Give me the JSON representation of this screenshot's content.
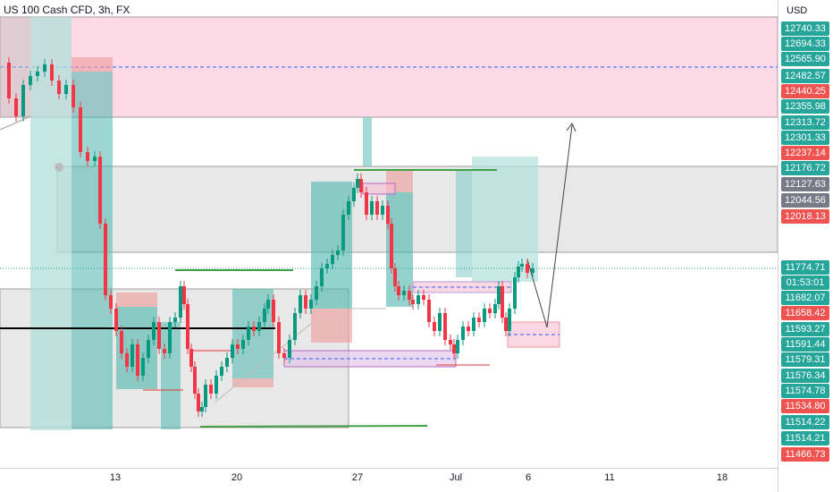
{
  "chart_data": {
    "type": "candlestick",
    "title": "US 100 Cash CFD, 3h, FX",
    "currency": "USD",
    "x_tick_labels": [
      "13",
      "20",
      "27",
      "Jul",
      "6",
      "11",
      "18"
    ],
    "price_labels": [
      {
        "text": "12740.33",
        "color": "#26a69a"
      },
      {
        "text": "12694.33",
        "color": "#26a69a"
      },
      {
        "text": "12565.90",
        "color": "#26a69a"
      },
      {
        "text": "12482.57",
        "color": "#26a69a"
      },
      {
        "text": "12440.25",
        "color": "#ef5350"
      },
      {
        "text": "12355.98",
        "color": "#26a69a"
      },
      {
        "text": "12313.72",
        "color": "#26a69a"
      },
      {
        "text": "12301.33",
        "color": "#26a69a"
      },
      {
        "text": "12237.14",
        "color": "#ef5350"
      },
      {
        "text": "12176.72",
        "color": "#26a69a"
      },
      {
        "text": "12127.63",
        "color": "#787b86"
      },
      {
        "text": "12044.56",
        "color": "#787b86"
      },
      {
        "text": "12018.13",
        "color": "#ef5350"
      },
      {
        "text": "11774.71",
        "color": "#26a69a"
      },
      {
        "text": "01:53:01",
        "color": "#26a69a"
      },
      {
        "text": "11682.07",
        "color": "#26a69a"
      },
      {
        "text": "11658.42",
        "color": "#ef5350"
      },
      {
        "text": "11593.27",
        "color": "#26a69a"
      },
      {
        "text": "11591.44",
        "color": "#26a69a"
      },
      {
        "text": "11579.31",
        "color": "#26a69a"
      },
      {
        "text": "11576.34",
        "color": "#26a69a"
      },
      {
        "text": "11574.78",
        "color": "#26a69a"
      },
      {
        "text": "11534.80",
        "color": "#ef5350"
      },
      {
        "text": "11514.22",
        "color": "#26a69a"
      },
      {
        "text": "11514.21",
        "color": "#26a69a"
      },
      {
        "text": "11466.73",
        "color": "#ef5350"
      }
    ],
    "colors": {
      "up": "#089981",
      "down": "#f23645",
      "supply_zone": "#f8bbd0",
      "demand_zone": "#b2dfdb",
      "range_box": "#9e9e9e",
      "support_line": "#4caf50",
      "dashed_level": "#2962ff"
    }
  }
}
